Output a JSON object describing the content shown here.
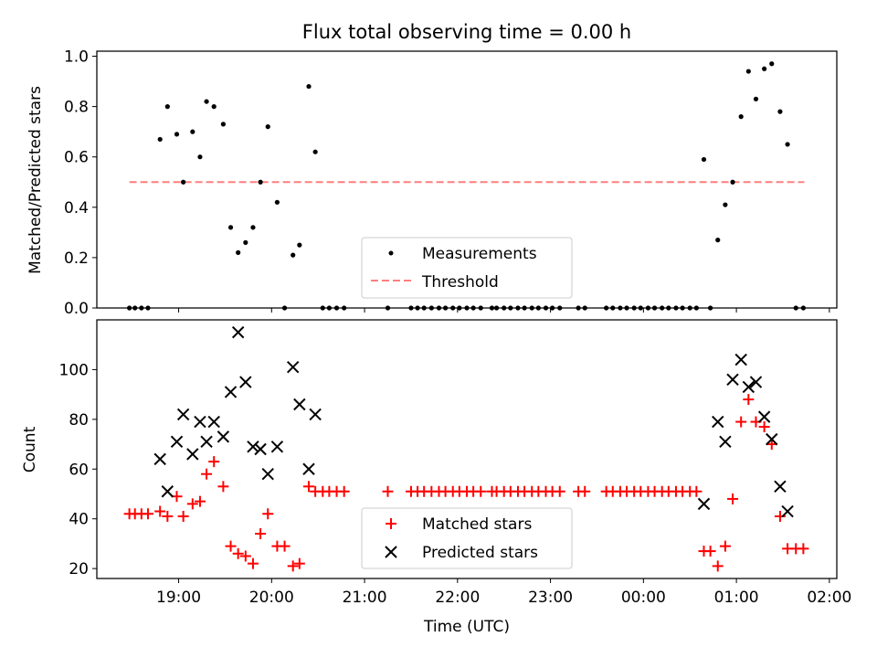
{
  "chart_data": [
    {
      "type": "scatter",
      "title": "Flux total observing time = 0.00 h",
      "xlabel": "",
      "ylabel": "Matched/Predicted stars",
      "xlim": [
        18.12,
        26.08
      ],
      "ylim": [
        0.0,
        1.02
      ],
      "yticks": [
        0.0,
        0.2,
        0.4,
        0.6,
        0.8,
        1.0
      ],
      "ytick_labels": [
        "0.0",
        "0.2",
        "0.4",
        "0.6",
        "0.8",
        "1.0"
      ],
      "xticks": [
        19,
        20,
        21,
        22,
        23,
        24,
        25,
        26
      ],
      "legend": {
        "position": "lower-center",
        "entries": [
          "Measurements",
          "Threshold"
        ]
      },
      "threshold": {
        "name": "Threshold",
        "value": 0.5,
        "x_range": [
          18.47,
          25.73
        ],
        "color": "#ff7f7f"
      },
      "series": [
        {
          "name": "Measurements",
          "color": "#000000",
          "marker": "dot",
          "points": [
            [
              18.47,
              0
            ],
            [
              18.53,
              0
            ],
            [
              18.6,
              0
            ],
            [
              18.67,
              0
            ],
            [
              18.8,
              0.67
            ],
            [
              18.88,
              0.8
            ],
            [
              18.98,
              0.69
            ],
            [
              19.05,
              0.5
            ],
            [
              19.15,
              0.7
            ],
            [
              19.23,
              0.6
            ],
            [
              19.3,
              0.82
            ],
            [
              19.38,
              0.8
            ],
            [
              19.48,
              0.73
            ],
            [
              19.56,
              0.32
            ],
            [
              19.64,
              0.22
            ],
            [
              19.72,
              0.26
            ],
            [
              19.8,
              0.32
            ],
            [
              19.88,
              0.5
            ],
            [
              19.96,
              0.72
            ],
            [
              20.06,
              0.42
            ],
            [
              20.14,
              0
            ],
            [
              20.23,
              0.21
            ],
            [
              20.3,
              0.25
            ],
            [
              20.4,
              0.88
            ],
            [
              20.47,
              0.62
            ],
            [
              20.55,
              0
            ],
            [
              20.62,
              0
            ],
            [
              20.7,
              0
            ],
            [
              20.78,
              0
            ],
            [
              21.25,
              0
            ],
            [
              21.5,
              0
            ],
            [
              21.57,
              0
            ],
            [
              21.64,
              0
            ],
            [
              21.72,
              0
            ],
            [
              21.8,
              0
            ],
            [
              21.87,
              0
            ],
            [
              21.95,
              0
            ],
            [
              22.02,
              0
            ],
            [
              22.1,
              0
            ],
            [
              22.17,
              0
            ],
            [
              22.25,
              0
            ],
            [
              22.37,
              0
            ],
            [
              22.42,
              0
            ],
            [
              22.5,
              0
            ],
            [
              22.57,
              0
            ],
            [
              22.65,
              0
            ],
            [
              22.72,
              0
            ],
            [
              22.8,
              0
            ],
            [
              22.87,
              0
            ],
            [
              22.95,
              0
            ],
            [
              23.02,
              0
            ],
            [
              23.1,
              0
            ],
            [
              23.3,
              0
            ],
            [
              23.37,
              0
            ],
            [
              23.6,
              0
            ],
            [
              23.67,
              0
            ],
            [
              23.75,
              0
            ],
            [
              23.82,
              0
            ],
            [
              23.9,
              0
            ],
            [
              23.97,
              0
            ],
            [
              24.05,
              0
            ],
            [
              24.12,
              0
            ],
            [
              24.2,
              0
            ],
            [
              24.27,
              0
            ],
            [
              24.35,
              0
            ],
            [
              24.42,
              0
            ],
            [
              24.5,
              0
            ],
            [
              24.57,
              0
            ],
            [
              24.65,
              0.59
            ],
            [
              24.72,
              0
            ],
            [
              24.8,
              0.27
            ],
            [
              24.88,
              0.41
            ],
            [
              24.96,
              0.5
            ],
            [
              25.05,
              0.76
            ],
            [
              25.13,
              0.94
            ],
            [
              25.21,
              0.83
            ],
            [
              25.3,
              0.95
            ],
            [
              25.38,
              0.97
            ],
            [
              25.47,
              0.78
            ],
            [
              25.55,
              0.65
            ],
            [
              25.64,
              0
            ],
            [
              25.72,
              0
            ]
          ]
        }
      ]
    },
    {
      "type": "scatter",
      "title": "",
      "xlabel": "Time (UTC)",
      "ylabel": "Count",
      "xlim": [
        18.12,
        26.08
      ],
      "ylim": [
        16,
        120
      ],
      "yticks": [
        20,
        40,
        60,
        80,
        100
      ],
      "ytick_labels": [
        "20",
        "40",
        "60",
        "80",
        "100"
      ],
      "xticks": [
        19,
        20,
        21,
        22,
        23,
        24,
        25,
        26
      ],
      "xtick_labels": [
        "19:00",
        "20:00",
        "21:00",
        "22:00",
        "23:00",
        "00:00",
        "01:00",
        "02:00"
      ],
      "legend": {
        "position": "lower-center",
        "entries": [
          "Matched stars",
          "Predicted stars"
        ]
      },
      "series": [
        {
          "name": "Matched stars",
          "color": "#ff0000",
          "marker": "plus",
          "points": [
            [
              18.47,
              42
            ],
            [
              18.53,
              42
            ],
            [
              18.6,
              42
            ],
            [
              18.67,
              42
            ],
            [
              18.8,
              43
            ],
            [
              18.88,
              41
            ],
            [
              18.98,
              49
            ],
            [
              19.05,
              41
            ],
            [
              19.15,
              46
            ],
            [
              19.23,
              47
            ],
            [
              19.3,
              58
            ],
            [
              19.38,
              63
            ],
            [
              19.48,
              53
            ],
            [
              19.56,
              29
            ],
            [
              19.64,
              26
            ],
            [
              19.72,
              25
            ],
            [
              19.8,
              22
            ],
            [
              19.88,
              34
            ],
            [
              19.96,
              42
            ],
            [
              20.06,
              29
            ],
            [
              20.14,
              29
            ],
            [
              20.23,
              21
            ],
            [
              20.3,
              22
            ],
            [
              20.4,
              53
            ],
            [
              20.47,
              51
            ],
            [
              20.55,
              51
            ],
            [
              20.62,
              51
            ],
            [
              20.7,
              51
            ],
            [
              20.78,
              51
            ],
            [
              21.25,
              51
            ],
            [
              21.5,
              51
            ],
            [
              21.57,
              51
            ],
            [
              21.64,
              51
            ],
            [
              21.72,
              51
            ],
            [
              21.8,
              51
            ],
            [
              21.87,
              51
            ],
            [
              21.95,
              51
            ],
            [
              22.02,
              51
            ],
            [
              22.1,
              51
            ],
            [
              22.17,
              51
            ],
            [
              22.25,
              51
            ],
            [
              22.37,
              51
            ],
            [
              22.42,
              51
            ],
            [
              22.5,
              51
            ],
            [
              22.57,
              51
            ],
            [
              22.65,
              51
            ],
            [
              22.72,
              51
            ],
            [
              22.8,
              51
            ],
            [
              22.87,
              51
            ],
            [
              22.95,
              51
            ],
            [
              23.02,
              51
            ],
            [
              23.1,
              51
            ],
            [
              23.3,
              51
            ],
            [
              23.37,
              51
            ],
            [
              23.6,
              51
            ],
            [
              23.67,
              51
            ],
            [
              23.75,
              51
            ],
            [
              23.82,
              51
            ],
            [
              23.9,
              51
            ],
            [
              23.97,
              51
            ],
            [
              24.05,
              51
            ],
            [
              24.12,
              51
            ],
            [
              24.2,
              51
            ],
            [
              24.27,
              51
            ],
            [
              24.35,
              51
            ],
            [
              24.42,
              51
            ],
            [
              24.5,
              51
            ],
            [
              24.57,
              51
            ],
            [
              24.65,
              27
            ],
            [
              24.72,
              27
            ],
            [
              24.8,
              21
            ],
            [
              24.88,
              29
            ],
            [
              24.96,
              48
            ],
            [
              25.05,
              79
            ],
            [
              25.13,
              88
            ],
            [
              25.21,
              79
            ],
            [
              25.3,
              77
            ],
            [
              25.38,
              70
            ],
            [
              25.47,
              41
            ],
            [
              25.55,
              28
            ],
            [
              25.64,
              28
            ],
            [
              25.72,
              28
            ]
          ]
        },
        {
          "name": "Predicted stars",
          "color": "#000000",
          "marker": "cross",
          "points": [
            [
              18.8,
              64
            ],
            [
              18.88,
              51
            ],
            [
              18.98,
              71
            ],
            [
              19.05,
              82
            ],
            [
              19.15,
              66
            ],
            [
              19.23,
              79
            ],
            [
              19.3,
              71
            ],
            [
              19.38,
              79
            ],
            [
              19.48,
              73
            ],
            [
              19.56,
              91
            ],
            [
              19.64,
              115
            ],
            [
              19.72,
              95
            ],
            [
              19.8,
              69
            ],
            [
              19.88,
              68
            ],
            [
              19.96,
              58
            ],
            [
              20.06,
              69
            ],
            [
              20.23,
              101
            ],
            [
              20.3,
              86
            ],
            [
              20.4,
              60
            ],
            [
              20.47,
              82
            ],
            [
              24.65,
              46
            ],
            [
              24.8,
              79
            ],
            [
              24.88,
              71
            ],
            [
              24.96,
              96
            ],
            [
              25.05,
              104
            ],
            [
              25.13,
              93
            ],
            [
              25.21,
              95
            ],
            [
              25.3,
              81
            ],
            [
              25.38,
              72
            ],
            [
              25.47,
              53
            ],
            [
              25.55,
              43
            ]
          ]
        }
      ]
    }
  ]
}
